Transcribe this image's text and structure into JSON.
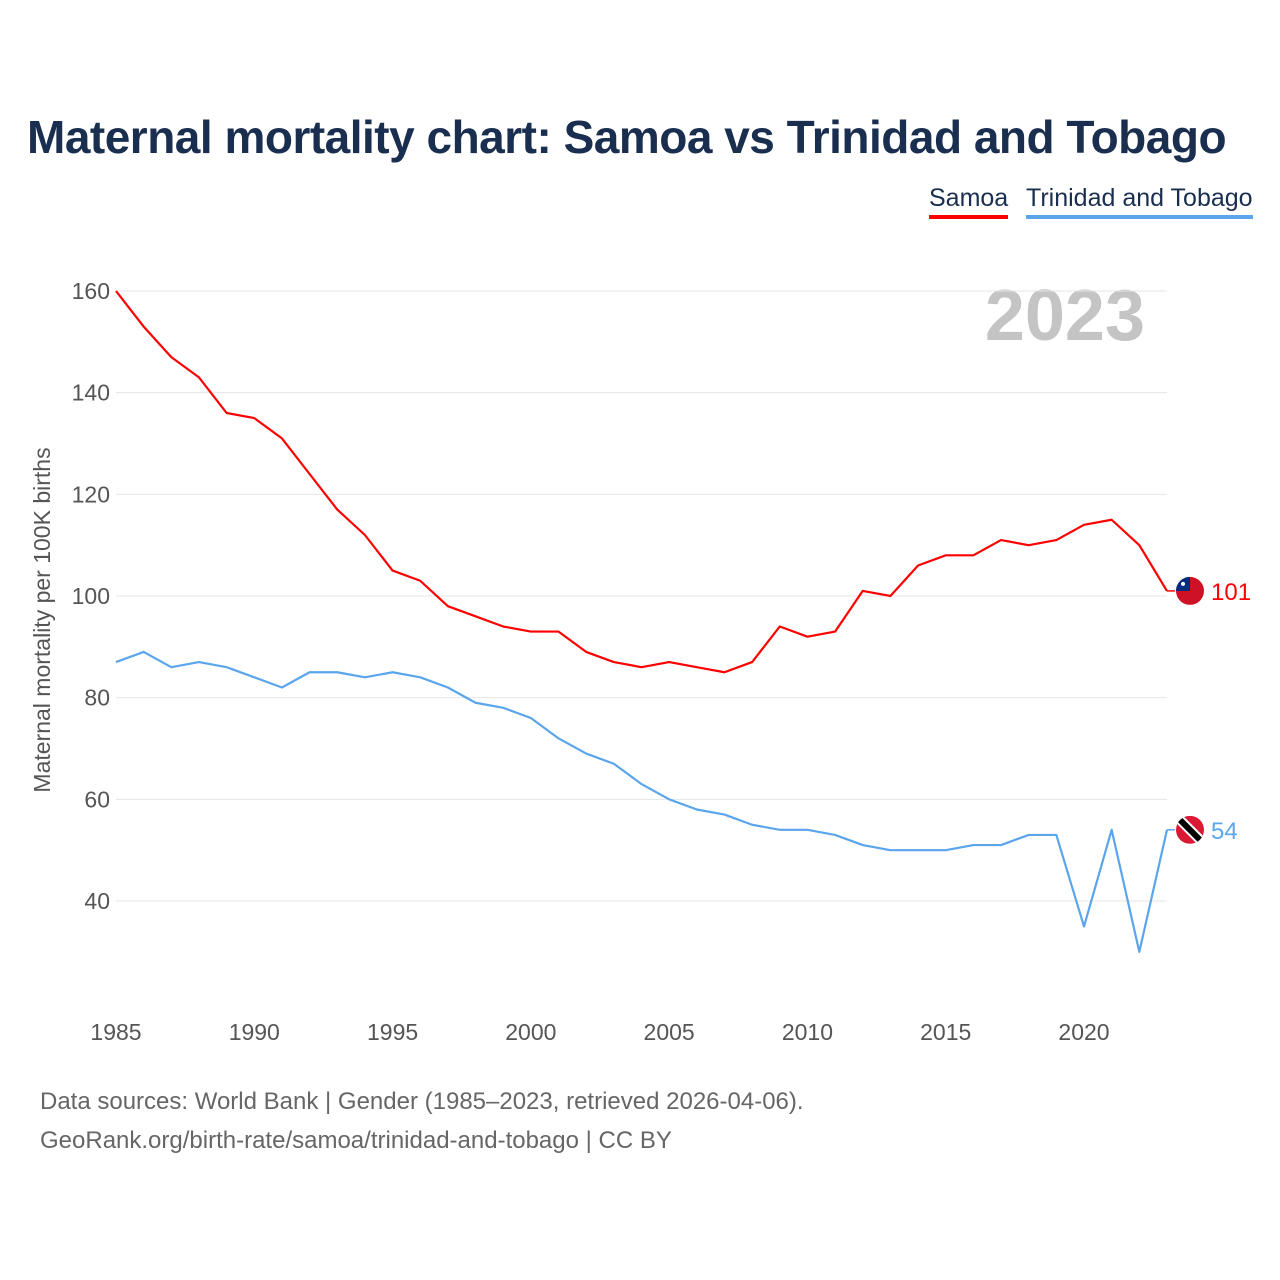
{
  "chart_data": {
    "type": "line",
    "title": "Maternal mortality chart: Samoa vs Trinidad and Tobago",
    "ylabel": "Maternal mortality per 100K births",
    "xlabel": "",
    "ylim": [
      25,
      165
    ],
    "xlim": [
      1985,
      2023
    ],
    "yticks": [
      40,
      60,
      80,
      100,
      120,
      140,
      160
    ],
    "xticks": [
      1985,
      1990,
      1995,
      2000,
      2005,
      2010,
      2015,
      2020
    ],
    "year_label": "2023",
    "legend_position": "top-right",
    "x": [
      1985,
      1986,
      1987,
      1988,
      1989,
      1990,
      1991,
      1992,
      1993,
      1994,
      1995,
      1996,
      1997,
      1998,
      1999,
      2000,
      2001,
      2002,
      2003,
      2004,
      2005,
      2006,
      2007,
      2008,
      2009,
      2010,
      2011,
      2012,
      2013,
      2014,
      2015,
      2016,
      2017,
      2018,
      2019,
      2020,
      2021,
      2022,
      2023
    ],
    "series": [
      {
        "name": "Samoa",
        "color": "#ff0000",
        "end_label": "101",
        "values": [
          160,
          153,
          147,
          143,
          136,
          135,
          131,
          124,
          117,
          112,
          105,
          103,
          98,
          96,
          94,
          93,
          93,
          89,
          87,
          86,
          87,
          86,
          85,
          87,
          94,
          92,
          93,
          101,
          100,
          106,
          108,
          108,
          111,
          110,
          111,
          114,
          115,
          110,
          101
        ]
      },
      {
        "name": "Trinidad and Tobago",
        "color": "#5aa5ec",
        "end_label": "54",
        "values": [
          87,
          89,
          86,
          87,
          86,
          84,
          82,
          85,
          85,
          84,
          85,
          84,
          82,
          79,
          78,
          76,
          72,
          69,
          67,
          63,
          60,
          58,
          57,
          55,
          54,
          54,
          53,
          51,
          50,
          50,
          50,
          51,
          51,
          53,
          53,
          35,
          54,
          30,
          54
        ]
      }
    ]
  },
  "footer": {
    "line1": "Data sources: World Bank | Gender (1985–2023, retrieved 2026-04-06).",
    "line2": "GeoRank.org/birth-rate/samoa/trinidad-and-tobago | CC BY"
  }
}
